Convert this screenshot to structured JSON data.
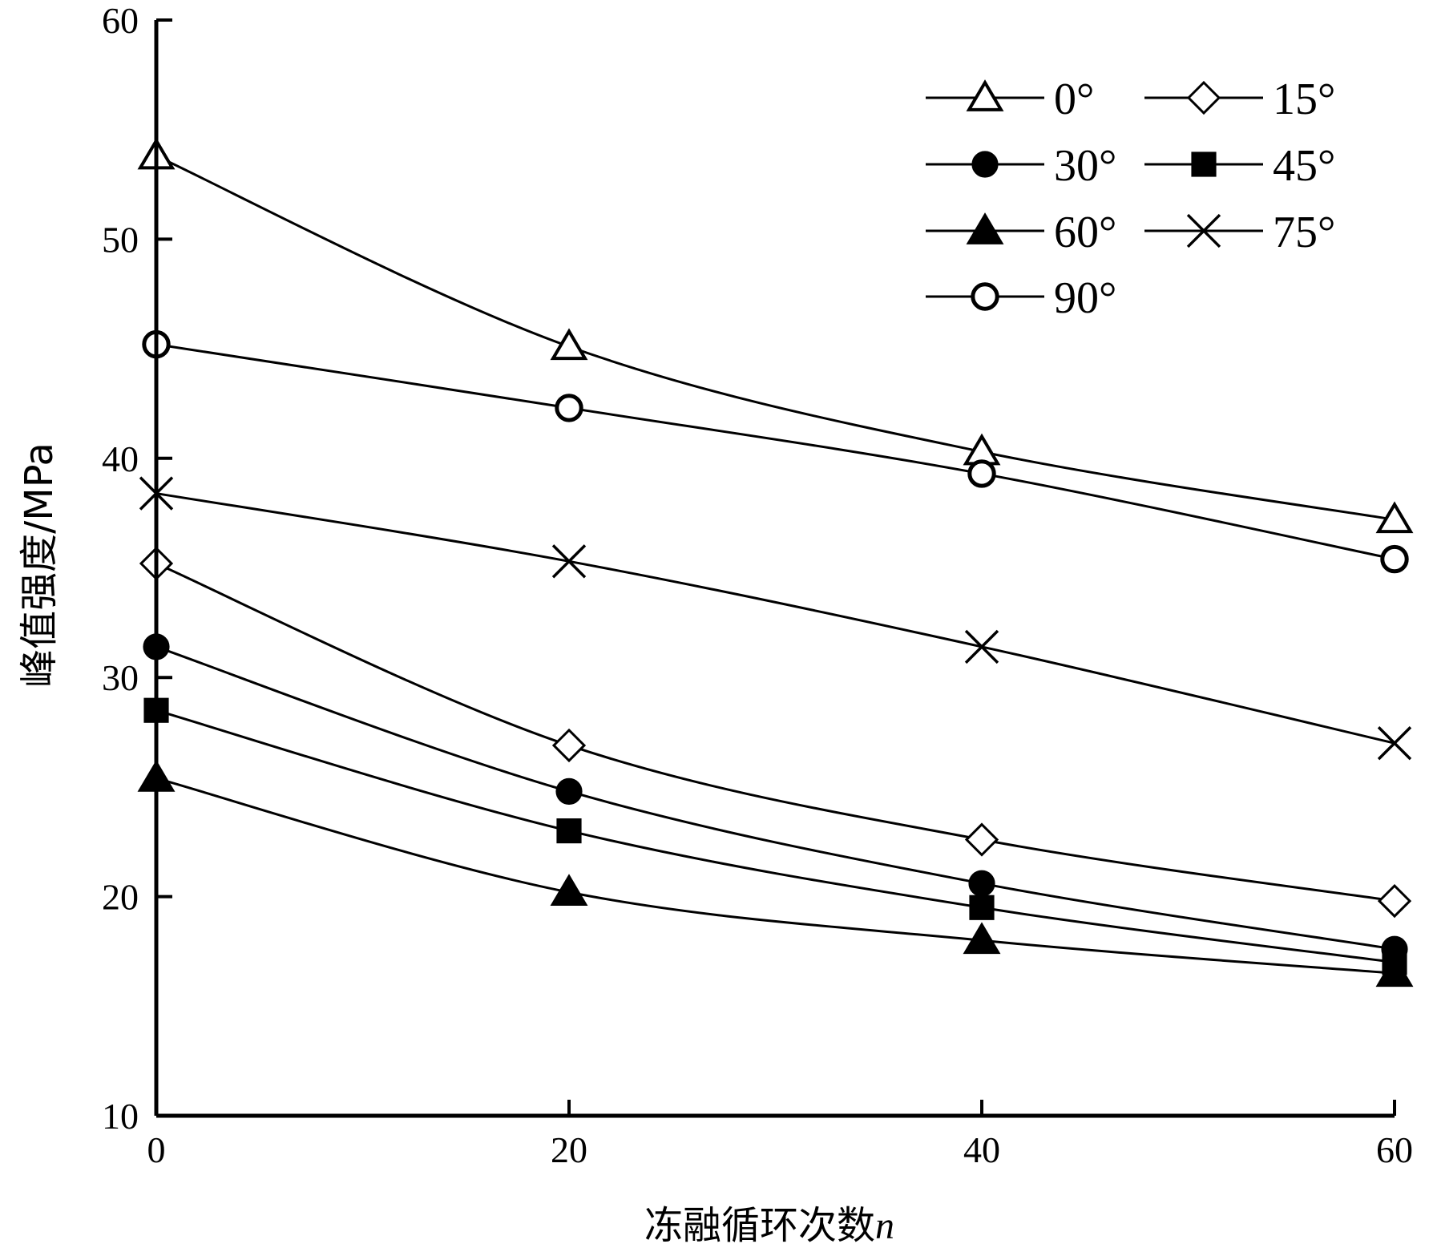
{
  "chart_data": {
    "type": "line",
    "xlabel_text": "冻融循环次数",
    "xlabel_var": "n",
    "ylabel": "峰值强度/MPa",
    "xlim": [
      0,
      60
    ],
    "ylim": [
      10,
      60
    ],
    "xticks": [
      0,
      20,
      40,
      60
    ],
    "yticks": [
      10,
      20,
      30,
      40,
      50,
      60
    ],
    "grid": false,
    "legend_position": "top-right",
    "x": [
      0,
      20,
      40,
      60
    ],
    "series": [
      {
        "name": "0°",
        "marker": "triangle-open",
        "values": [
          53.8,
          45.1,
          40.3,
          37.2
        ]
      },
      {
        "name": "15°",
        "marker": "diamond-open",
        "values": [
          35.2,
          26.9,
          22.6,
          19.8
        ]
      },
      {
        "name": "30°",
        "marker": "circle-filled",
        "values": [
          31.4,
          24.8,
          20.6,
          17.6
        ]
      },
      {
        "name": "45°",
        "marker": "square-filled",
        "values": [
          28.5,
          23.0,
          19.5,
          17.0
        ]
      },
      {
        "name": "60°",
        "marker": "triangle-filled",
        "values": [
          25.4,
          20.2,
          18.0,
          16.5
        ]
      },
      {
        "name": "75°",
        "marker": "x",
        "values": [
          38.4,
          35.3,
          31.4,
          27.0
        ]
      },
      {
        "name": "90°",
        "marker": "circle-open",
        "values": [
          45.2,
          42.3,
          39.3,
          35.4
        ]
      }
    ]
  }
}
